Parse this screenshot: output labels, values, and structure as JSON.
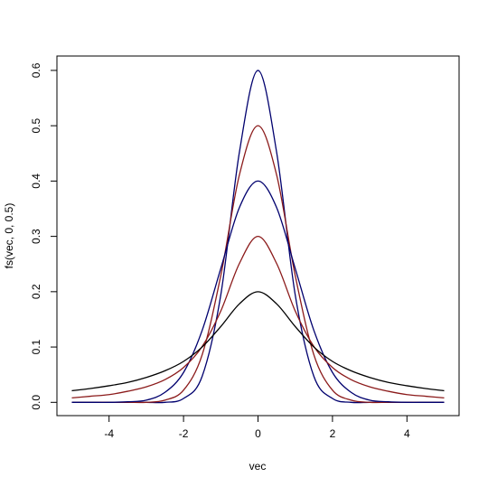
{
  "chart_data": {
    "type": "line",
    "x_label": "vec",
    "y_label": "fs(vec, 0, 0.5)",
    "x": [
      -5,
      -4.5,
      -4,
      -3.5,
      -3,
      -2.5,
      -2,
      -1.5,
      -1,
      -0.5,
      0,
      0.5,
      1,
      1.5,
      2,
      2.5,
      3,
      3.5,
      4,
      4.5,
      5
    ],
    "series": [
      {
        "color": "#00006e",
        "values": [
          0,
          0,
          0,
          0,
          0,
          0,
          0.007,
          0.047,
          0.194,
          0.452,
          0.6,
          0.452,
          0.194,
          0.047,
          0.007,
          0,
          0,
          0,
          0,
          0,
          0
        ]
      },
      {
        "color": "#8b1a1a",
        "values": [
          0,
          0,
          0,
          0,
          0,
          0.004,
          0.022,
          0.086,
          0.229,
          0.411,
          0.5,
          0.411,
          0.229,
          0.086,
          0.022,
          0.004,
          0,
          0,
          0,
          0,
          0
        ]
      },
      {
        "color": "#00006e",
        "values": [
          0,
          0,
          0,
          0.001,
          0.004,
          0.018,
          0.054,
          0.13,
          0.242,
          0.352,
          0.4,
          0.352,
          0.242,
          0.13,
          0.054,
          0.018,
          0.004,
          0.001,
          0,
          0,
          0
        ]
      },
      {
        "color": "#8b1a1a",
        "values": [
          0.008,
          0.011,
          0.014,
          0.02,
          0.028,
          0.041,
          0.063,
          0.101,
          0.165,
          0.251,
          0.3,
          0.251,
          0.165,
          0.101,
          0.063,
          0.041,
          0.028,
          0.02,
          0.014,
          0.011,
          0.008
        ]
      },
      {
        "color": "#000000",
        "values": [
          0.021,
          0.025,
          0.03,
          0.036,
          0.045,
          0.057,
          0.074,
          0.1,
          0.137,
          0.178,
          0.2,
          0.178,
          0.137,
          0.1,
          0.074,
          0.057,
          0.045,
          0.036,
          0.03,
          0.025,
          0.021
        ]
      }
    ],
    "xlim": [
      -5.4,
      5.4
    ],
    "xticks": [
      -4,
      -2,
      0,
      2,
      4
    ],
    "ylim": [
      -0.024,
      0.626
    ],
    "yticks": [
      {
        "value": 0,
        "label": "0.0"
      },
      0.1,
      0.2,
      0.3,
      0.4,
      0.5,
      0.6
    ]
  }
}
